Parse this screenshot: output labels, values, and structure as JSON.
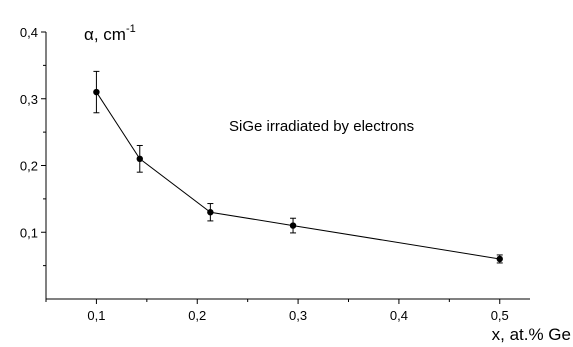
{
  "chart_data": {
    "type": "line",
    "title": "",
    "xlabel": "x, at.% Ge",
    "ylabel": "α, cm",
    "ylabel_superscript": "-1",
    "annotation": "SiGe irradiated by electrons",
    "xlim": [
      0.05,
      0.53
    ],
    "ylim": [
      0.0,
      0.4
    ],
    "xticks": [
      0.1,
      0.2,
      0.3,
      0.4,
      0.5
    ],
    "xtick_labels": [
      "0,1",
      "0,2",
      "0,3",
      "0,4",
      "0,5"
    ],
    "yticks": [
      0.1,
      0.2,
      0.3,
      0.4
    ],
    "ytick_labels": [
      "0,1",
      "0,2",
      "0,3",
      "0,4"
    ],
    "grid": false,
    "series": [
      {
        "x": [
          0.1,
          0.143,
          0.213,
          0.295,
          0.5
        ],
        "y": [
          0.31,
          0.21,
          0.13,
          0.11,
          0.06
        ],
        "yerr": [
          0.031,
          0.02,
          0.013,
          0.011,
          0.006
        ],
        "color": "#000000"
      }
    ]
  }
}
